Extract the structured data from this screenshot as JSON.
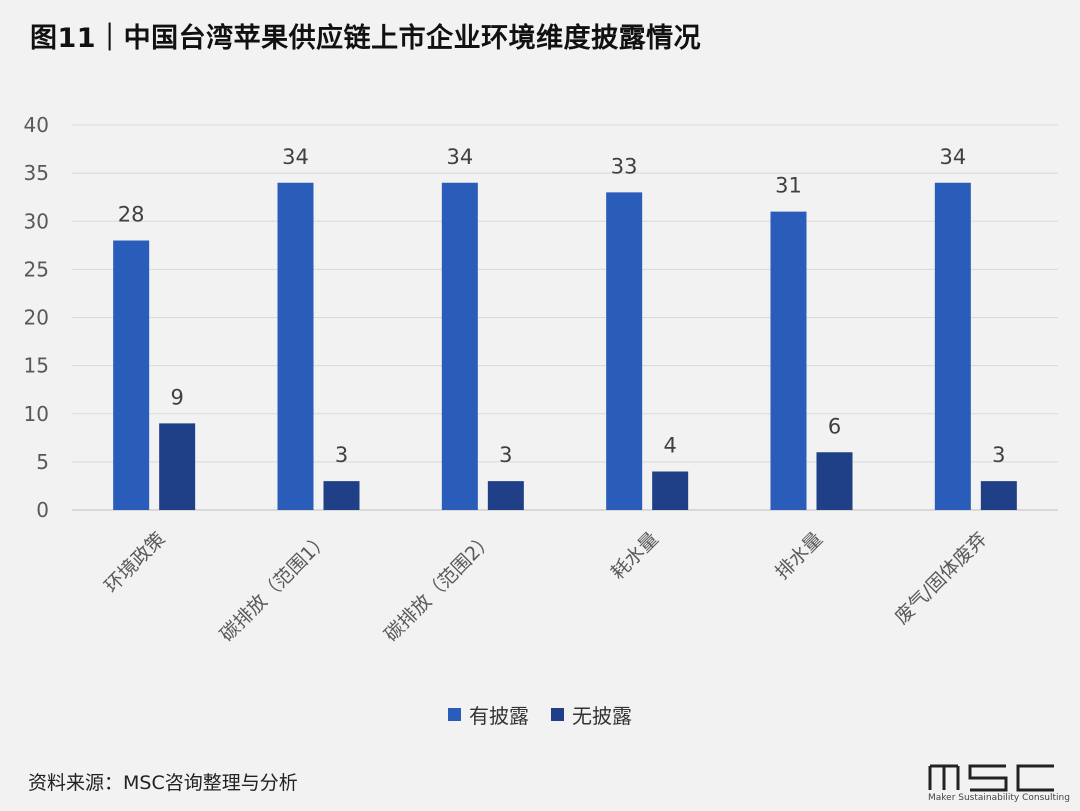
{
  "title": "图11｜中国台湾苹果供应链上市企业环境维度披露情况",
  "source": "资料来源：MSC咨询整理与分析",
  "logo": {
    "text": "MSC",
    "subtitle": "Maker Sustainability Consulting"
  },
  "colors": {
    "series1": "#2a5cba",
    "series2": "#1f3f86",
    "grid": "#d9d9d9",
    "background": "#f2f2f2"
  },
  "chart_data": {
    "type": "bar",
    "title": "图11｜中国台湾苹果供应链上市企业环境维度披露情况",
    "categories": [
      "环境政策",
      "碳排放（范围1）",
      "碳排放（范围2）",
      "耗水量",
      "排水量",
      "废气/固体废弃"
    ],
    "series": [
      {
        "name": "有披露",
        "values": [
          28,
          34,
          34,
          33,
          31,
          34
        ]
      },
      {
        "name": "无披露",
        "values": [
          9,
          3,
          3,
          4,
          6,
          3
        ]
      }
    ],
    "ylim": [
      0,
      40
    ],
    "yticks": [
      0,
      5,
      10,
      15,
      20,
      25,
      30,
      35,
      40
    ],
    "grid": true,
    "legend_position": "bottom",
    "data_labels": true
  }
}
